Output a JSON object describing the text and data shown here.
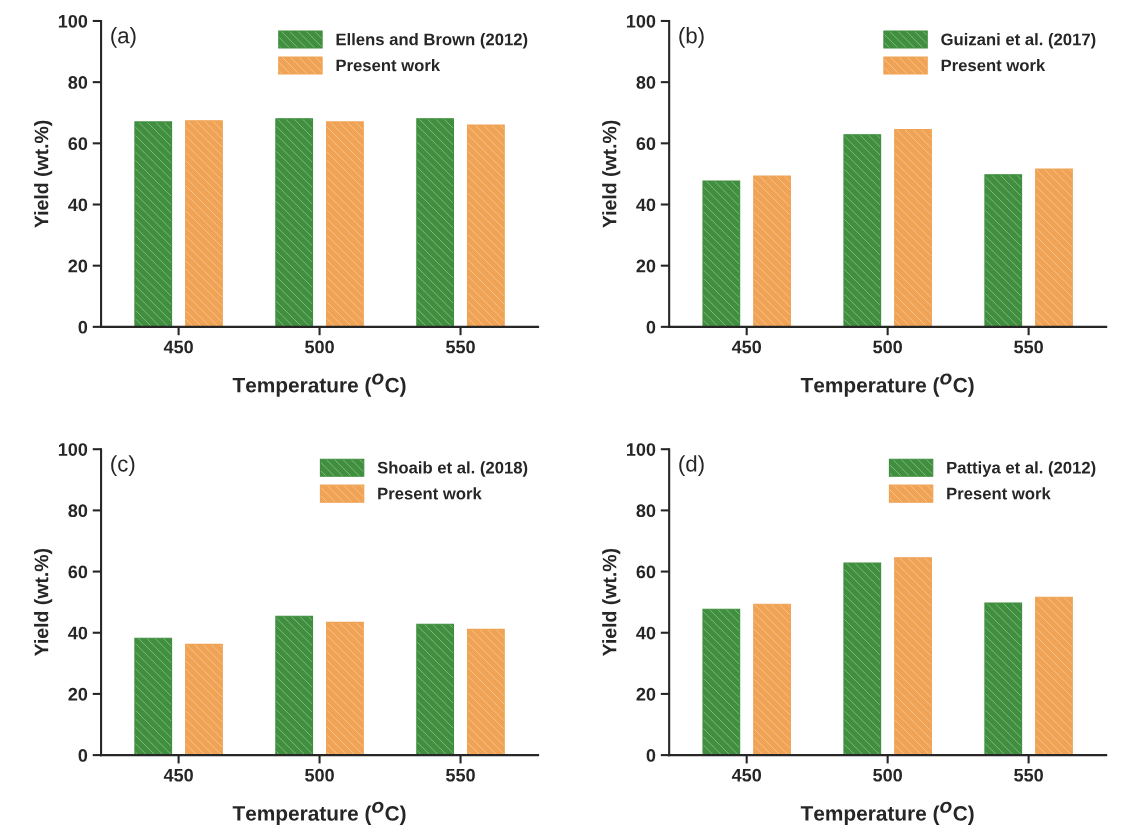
{
  "chart_data": [
    {
      "type": "bar",
      "categories": [
        "450",
        "500",
        "550"
      ],
      "xlabel": "Temperature ($^{O}$C)",
      "ylabel": "Yield (wt.%)",
      "ylim": [
        0,
        100
      ],
      "yticks": [
        0,
        20,
        40,
        60,
        80,
        100
      ],
      "grid": false,
      "legend": "top right",
      "annotations": [
        "(a)"
      ],
      "series": [
        {
          "name": "Ellens and Brown (2012)",
          "color": "#3f8f3f",
          "values": [
            67,
            68,
            68
          ]
        },
        {
          "name": "Present work",
          "color": "#f0a354",
          "values": [
            67.4,
            67,
            66
          ]
        }
      ]
    },
    {
      "type": "bar",
      "categories": [
        "450",
        "500",
        "550"
      ],
      "xlabel": "Temperature ($^{O}$C)",
      "ylabel": "Yield (wt.%)",
      "ylim": [
        0,
        100
      ],
      "yticks": [
        0,
        20,
        40,
        60,
        80,
        100
      ],
      "grid": false,
      "legend": "top right",
      "annotations": [
        "(b)"
      ],
      "series": [
        {
          "name": "Guizani et al. (2017)",
          "color": "#3f8f3f",
          "values": [
            47.7,
            62.8,
            49.7
          ]
        },
        {
          "name": "Present work",
          "color": "#f0a354",
          "values": [
            49.3,
            64.5,
            51.6
          ]
        }
      ]
    },
    {
      "type": "bar",
      "categories": [
        "450",
        "500",
        "550"
      ],
      "xlabel": "Temperature ($^{O}$C)",
      "ylabel": "Yield (wt.%)",
      "ylim": [
        0,
        100
      ],
      "yticks": [
        0,
        20,
        40,
        60,
        80,
        100
      ],
      "grid": false,
      "legend": "top right",
      "annotations": [
        "(c)"
      ],
      "series": [
        {
          "name": "Shoaib et al. (2018)",
          "color": "#3f8f3f",
          "values": [
            38.2,
            45.4,
            42.8
          ]
        },
        {
          "name": "Present work",
          "color": "#f0a354",
          "values": [
            36.2,
            43.4,
            41.1
          ]
        }
      ]
    },
    {
      "type": "bar",
      "categories": [
        "450",
        "500",
        "550"
      ],
      "xlabel": "Temperature ($^{O}$C)",
      "ylabel": "Yield (wt.%)",
      "ylim": [
        0,
        100
      ],
      "yticks": [
        0,
        20,
        40,
        60,
        80,
        100
      ],
      "grid": false,
      "legend": "top right",
      "annotations": [
        "(d)"
      ],
      "series": [
        {
          "name": "Pattiya et al. (2012)",
          "color": "#3f8f3f",
          "values": [
            47.7,
            62.8,
            49.7
          ]
        },
        {
          "name": "Present work",
          "color": "#f0a354",
          "values": [
            49.3,
            64.5,
            51.6
          ]
        }
      ]
    }
  ]
}
